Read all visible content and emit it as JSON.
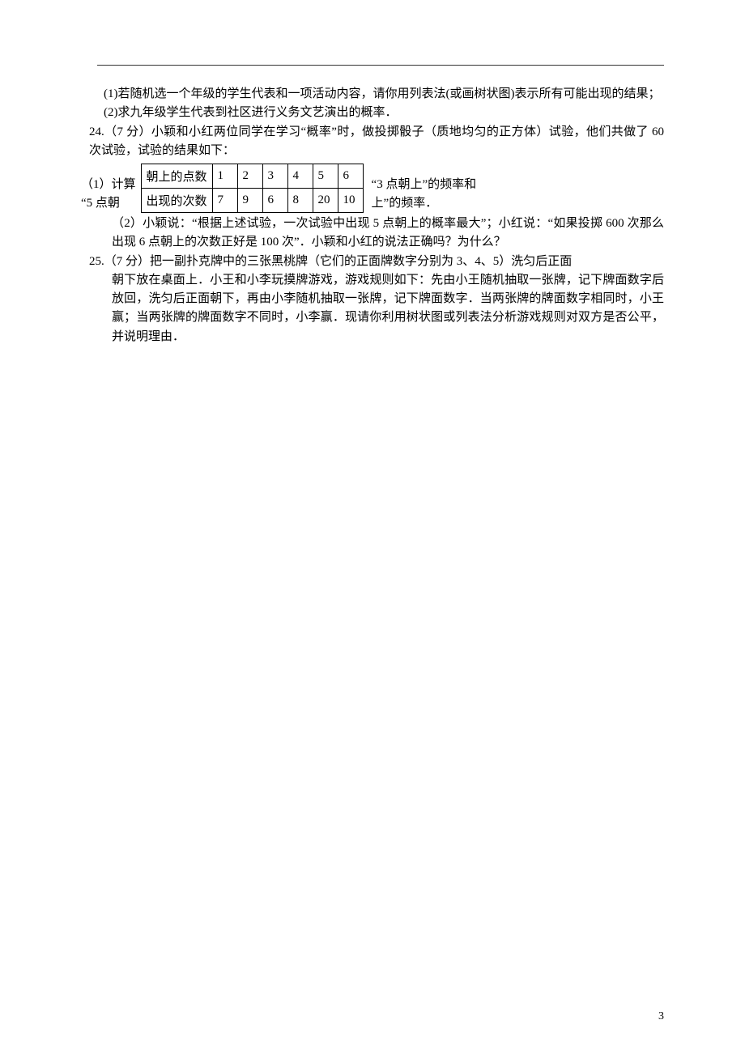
{
  "q23": {
    "part1": "(1)若随机选一个年级的学生代表和一项活动内容，请你用列表法(或画树状图)表示所有可能出现的结果；",
    "part2": "(2)求九年级学生代表到社区进行义务文艺演出的概率．"
  },
  "q24": {
    "header": "24.（7 分）小颖和小红两位同学在学习“概率”时，做投掷骰子（质地均匀的正方体）试验，他们共做了 60 次试验，试验的结果如下：",
    "table": {
      "row1_label": "朝上的点数",
      "row1_values": [
        "1",
        "2",
        "3",
        "4",
        "5",
        "6"
      ],
      "row2_label": "出现的次数",
      "row2_values": [
        "7",
        "9",
        "6",
        "8",
        "20",
        "10"
      ]
    },
    "left_line1": "（1）计算",
    "left_line2": "“5 点朝",
    "right_line1": "“3 点朝上”的频率和",
    "right_line2": "上”的频率．",
    "part2": "（2）小颖说：“根据上述试验，一次试验中出现 5 点朝上的概率最大”；小红说：“如果投掷 600 次那么出现 6 点朝上的次数正好是 100 次”．小颖和小红的说法正确吗？为什么？"
  },
  "q25": {
    "text": "25.（7 分）把一副扑克牌中的三张黑桃牌（它们的正面牌数字分别为 3、4、5）洗匀后正面朝下放在桌面上．小王和小李玩摸牌游戏，游戏规则如下：先由小王随机抽取一张牌，记下牌面数字后放回，洗匀后正面朝下，再由小李随机抽取一张牌，记下牌面数字．当两张牌的牌面数字相同时，小王赢；当两张牌的牌面数字不同时，小李赢．现请你利用树状图或列表法分析游戏规则对双方是否公平，并说明理由．",
    "body": "朝下放在桌面上．小王和小李玩摸牌游戏，游戏规则如下：先由小王随机抽取一张牌，记下牌面数字后放回，洗匀后正面朝下，再由小李随机抽取一张牌，记下牌面数字．当两张牌的牌面数字相同时，小王赢；当两张牌的牌面数字不同时，小李赢．现请你利用树状图或列表法分析游戏规则对双方是否公平，并说明理由．",
    "line1": "25.（7 分）把一副扑克牌中的三张黑桃牌（它们的正面牌数字分别为 3、4、5）洗匀后正面"
  },
  "page_number": "3"
}
